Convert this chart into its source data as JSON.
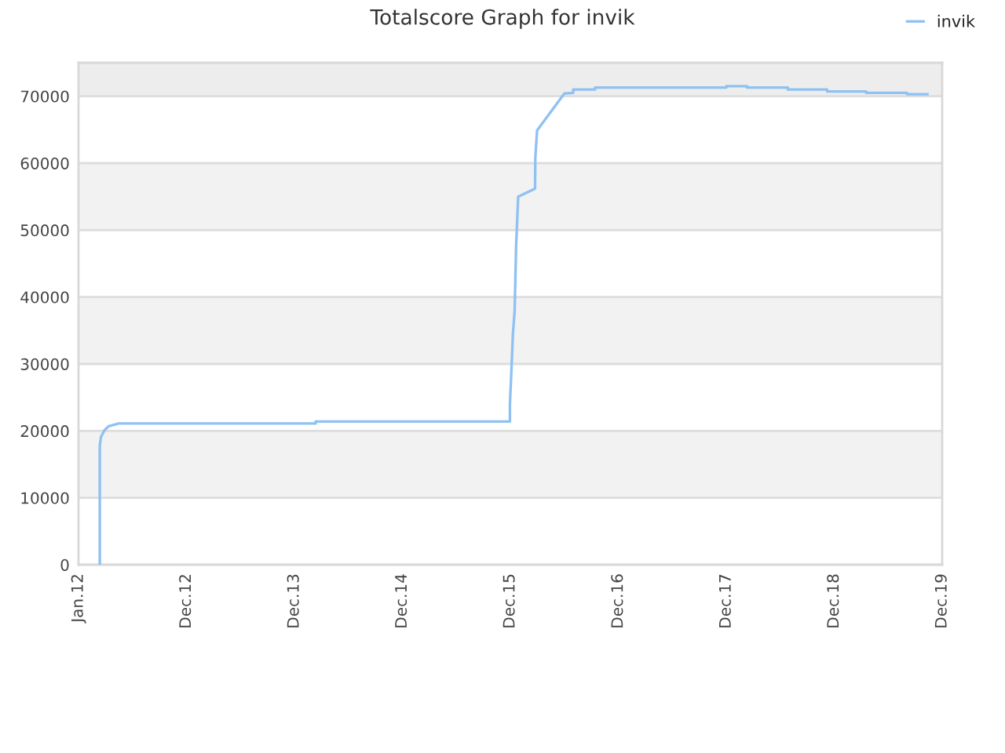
{
  "chart_data": {
    "type": "line",
    "title": "Totalscore Graph for invik",
    "x": [
      "2012-03-13",
      "2012-03-13",
      "2012-03-17",
      "2012-03-29",
      "2012-04-12",
      "2012-05-16",
      "2014-03-13",
      "2014-03-13",
      "2015-12-30",
      "2015-12-30",
      "2016-01-04",
      "2016-01-09",
      "2016-01-15",
      "2016-01-20",
      "2016-01-27",
      "2016-03-24",
      "2016-03-25",
      "2016-03-31",
      "2016-07-01",
      "2016-07-31",
      "2016-07-31",
      "2016-10-13",
      "2016-10-13",
      "2017-12-31",
      "2017-12-31",
      "2018-03-11",
      "2018-03-11",
      "2018-07-27",
      "2018-07-27",
      "2018-12-07",
      "2018-12-07",
      "2019-04-18",
      "2019-04-18",
      "2019-09-03",
      "2019-09-03",
      "2019-11-11"
    ],
    "series": [
      {
        "name": "invik",
        "color": "#8fc1f2",
        "values": [
          0,
          17800,
          19100,
          20100,
          20700,
          21100,
          21100,
          21400,
          21400,
          24000,
          28900,
          34400,
          37900,
          47600,
          55000,
          56200,
          60900,
          64900,
          70400,
          70500,
          71000,
          71000,
          71300,
          71300,
          71500,
          71500,
          71300,
          71300,
          71000,
          71000,
          70700,
          70700,
          70500,
          70500,
          70300,
          70300
        ]
      }
    ],
    "xlim": [
      "2012-01-01",
      "2019-12-31"
    ],
    "xticks": [
      {
        "value": "2012-01-01",
        "label": "Jan.12"
      },
      {
        "value": "2012-12-31",
        "label": "Dec.12"
      },
      {
        "value": "2013-12-31",
        "label": "Dec.13"
      },
      {
        "value": "2014-12-31",
        "label": "Dec.14"
      },
      {
        "value": "2015-12-31",
        "label": "Dec.15"
      },
      {
        "value": "2016-12-31",
        "label": "Dec.16"
      },
      {
        "value": "2017-12-31",
        "label": "Dec.17"
      },
      {
        "value": "2018-12-31",
        "label": "Dec.18"
      },
      {
        "value": "2019-12-31",
        "label": "Dec.19"
      }
    ],
    "ylim": [
      0,
      75000
    ],
    "yticks": [
      0,
      10000,
      20000,
      30000,
      40000,
      50000,
      60000,
      70000
    ],
    "bands": [
      {
        "axis": "y",
        "from": 10000,
        "to": 20000,
        "color": "#f2f2f2"
      },
      {
        "axis": "y",
        "from": 30000,
        "to": 40000,
        "color": "#f2f2f2"
      },
      {
        "axis": "y",
        "from": 50000,
        "to": 60000,
        "color": "#f2f2f2"
      },
      {
        "axis": "y",
        "from": 70000,
        "to": 75000,
        "color": "#ededed"
      }
    ],
    "grid": "y",
    "legend": "top right",
    "marker": "none",
    "line_style": "solid"
  }
}
